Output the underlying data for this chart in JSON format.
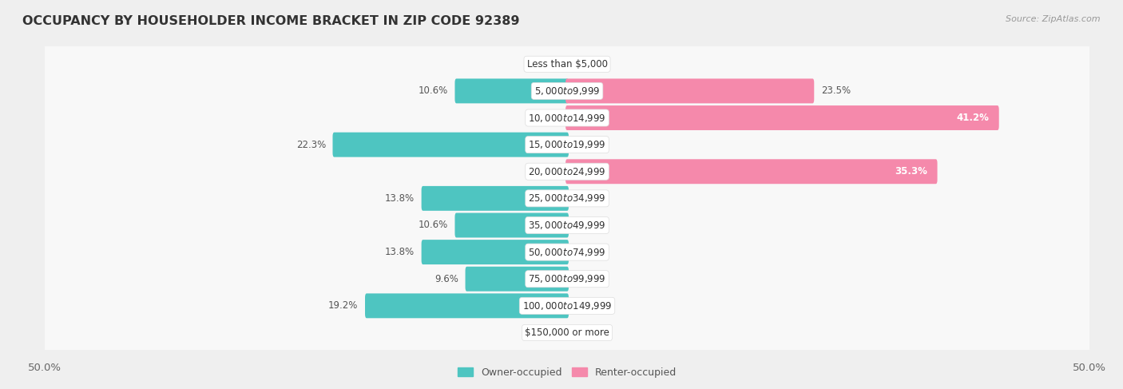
{
  "title": "OCCUPANCY BY HOUSEHOLDER INCOME BRACKET IN ZIP CODE 92389",
  "source": "Source: ZipAtlas.com",
  "categories": [
    "Less than $5,000",
    "$5,000 to $9,999",
    "$10,000 to $14,999",
    "$15,000 to $19,999",
    "$20,000 to $24,999",
    "$25,000 to $34,999",
    "$35,000 to $49,999",
    "$50,000 to $74,999",
    "$75,000 to $99,999",
    "$100,000 to $149,999",
    "$150,000 or more"
  ],
  "owner_values": [
    0.0,
    10.6,
    0.0,
    22.3,
    0.0,
    13.8,
    10.6,
    13.8,
    9.6,
    19.2,
    0.0
  ],
  "renter_values": [
    0.0,
    23.5,
    41.2,
    0.0,
    35.3,
    0.0,
    0.0,
    0.0,
    0.0,
    0.0,
    0.0
  ],
  "owner_color": "#4EC5C1",
  "renter_color": "#F589AB",
  "owner_label": "Owner-occupied",
  "renter_label": "Renter-occupied",
  "xlim": 50.0,
  "background_color": "#efefef",
  "row_bg_color": "#e8e8e8",
  "bar_bg_color": "#f8f8f8",
  "title_fontsize": 11.5,
  "source_fontsize": 8,
  "axis_fontsize": 9.5,
  "label_fontsize": 8.5,
  "category_fontsize": 8.5
}
